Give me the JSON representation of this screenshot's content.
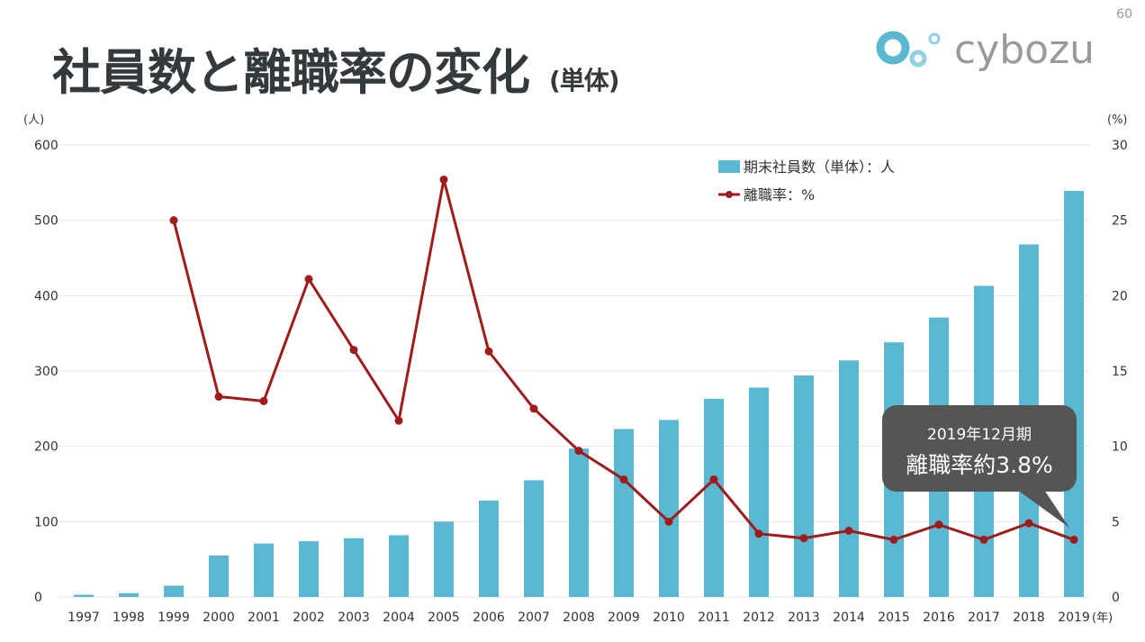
{
  "page_number": "60",
  "title": "社員数と離職率の変化",
  "title_sub": "(単体)",
  "logo_text": "cybozu",
  "callout": {
    "line1": "2019年12月期",
    "line2": "離職率約3.8%"
  },
  "colors": {
    "bar": "#5bb8d2",
    "line": "#a01c1c",
    "title": "#333a3d",
    "callout": "#555555"
  },
  "chart_data": {
    "type": "bar+line",
    "categories": [
      "1997",
      "1998",
      "1999",
      "2000",
      "2001",
      "2002",
      "2003",
      "2004",
      "2005",
      "2006",
      "2007",
      "2008",
      "2009",
      "2010",
      "2011",
      "2012",
      "2013",
      "2014",
      "2015",
      "2016",
      "2017",
      "2018",
      "2019"
    ],
    "x_unit": "(年)",
    "y_left": {
      "unit": "(人)",
      "range": [
        0,
        600
      ],
      "ticks": [
        "0",
        "100",
        "200",
        "300",
        "400",
        "500",
        "600"
      ]
    },
    "y_right": {
      "unit": "(%)",
      "range": [
        0,
        30
      ],
      "ticks": [
        "0",
        "5",
        "10",
        "15",
        "20",
        "25",
        "30"
      ]
    },
    "grid": true,
    "legend_position": "top-right",
    "series": [
      {
        "name": "期末社員数（単体）：人",
        "type": "bar",
        "axis": "left",
        "values": [
          3,
          5,
          15,
          55,
          71,
          74,
          78,
          82,
          100,
          128,
          155,
          197,
          223,
          235,
          263,
          278,
          294,
          314,
          338,
          371,
          413,
          468,
          539
        ]
      },
      {
        "name": "離職率：%",
        "type": "line",
        "axis": "right",
        "values": [
          null,
          null,
          25.0,
          13.3,
          13.0,
          21.1,
          16.4,
          11.7,
          27.7,
          16.3,
          12.5,
          9.7,
          7.8,
          5.0,
          7.8,
          4.2,
          3.9,
          4.4,
          3.8,
          4.8,
          3.8,
          4.9,
          3.8
        ]
      }
    ]
  }
}
